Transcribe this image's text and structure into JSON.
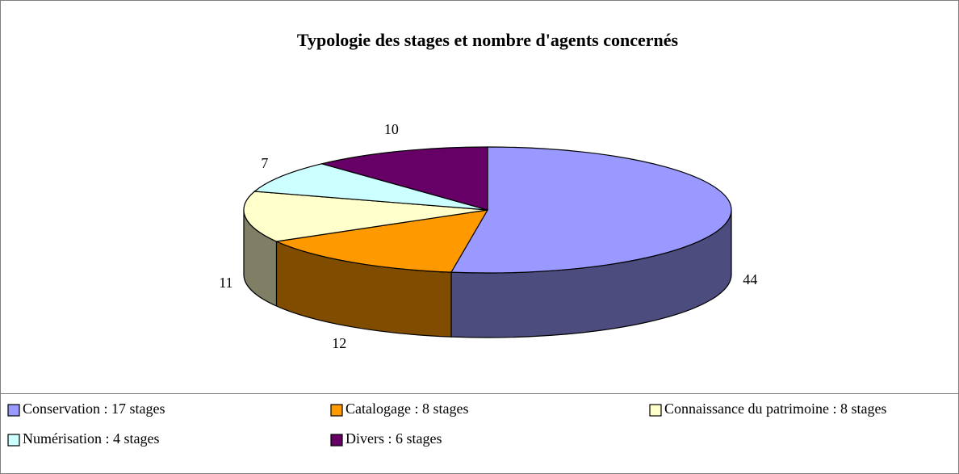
{
  "chart_data": {
    "type": "pie3d",
    "title": "Typologie des stages et nombre d'agents concernés",
    "categories": [
      "Conservation : 17 stages",
      "Catalogage : 8 stages",
      "Connaissance du patrimoine : 8 stages",
      "Numérisation : 4 stages",
      "Divers : 6 stages"
    ],
    "values": [
      44,
      12,
      11,
      7,
      10
    ],
    "colors": [
      "#9999ff",
      "#ff9900",
      "#ffffcc",
      "#ccffff",
      "#660066"
    ],
    "legend": "bottom"
  }
}
